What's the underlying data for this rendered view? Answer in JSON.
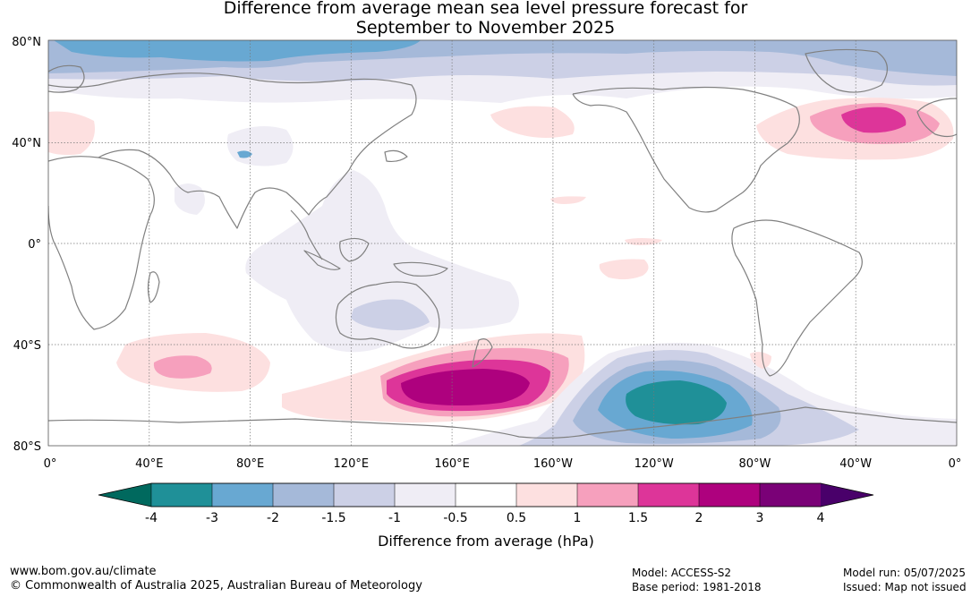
{
  "title": {
    "line1": "Difference from average mean sea level pressure forecast for",
    "line2": "September to November 2025"
  },
  "map": {
    "lat_labels": [
      "80°N",
      "40°N",
      "0°",
      "40°S",
      "80°S"
    ],
    "lon_labels": [
      "0°",
      "40°E",
      "80°E",
      "120°E",
      "160°E",
      "160°W",
      "120°W",
      "80°W",
      "40°W",
      "0°"
    ],
    "land_color": "#ffffff",
    "coast_color": "#808080"
  },
  "colorbar": {
    "label": "Difference from average (hPa)",
    "ticks": [
      "-4",
      "-3",
      "-2",
      "-1.5",
      "-1",
      "-0.5",
      "0.5",
      "1",
      "1.5",
      "2",
      "3",
      "4"
    ],
    "colors": {
      "under": "#00695e",
      "bins": [
        "#1f9098",
        "#68a8d2",
        "#a5b9d9",
        "#ccd0e6",
        "#efedf5",
        "#ffffff",
        "#fde0e0",
        "#f6a0bd",
        "#dd3599",
        "#ae017e",
        "#7a0177"
      ],
      "over": "#49006a"
    }
  },
  "footer": {
    "url": "www.bom.gov.au/climate",
    "copyright": "© Commonwealth of Australia 2025, Australian Bureau of Meteorology",
    "model": "Model: ACCESS-S2",
    "base_period": "Base period: 1981-2018",
    "model_run": "Model run: 05/07/2025",
    "issued": "Issued: Map not issued"
  }
}
